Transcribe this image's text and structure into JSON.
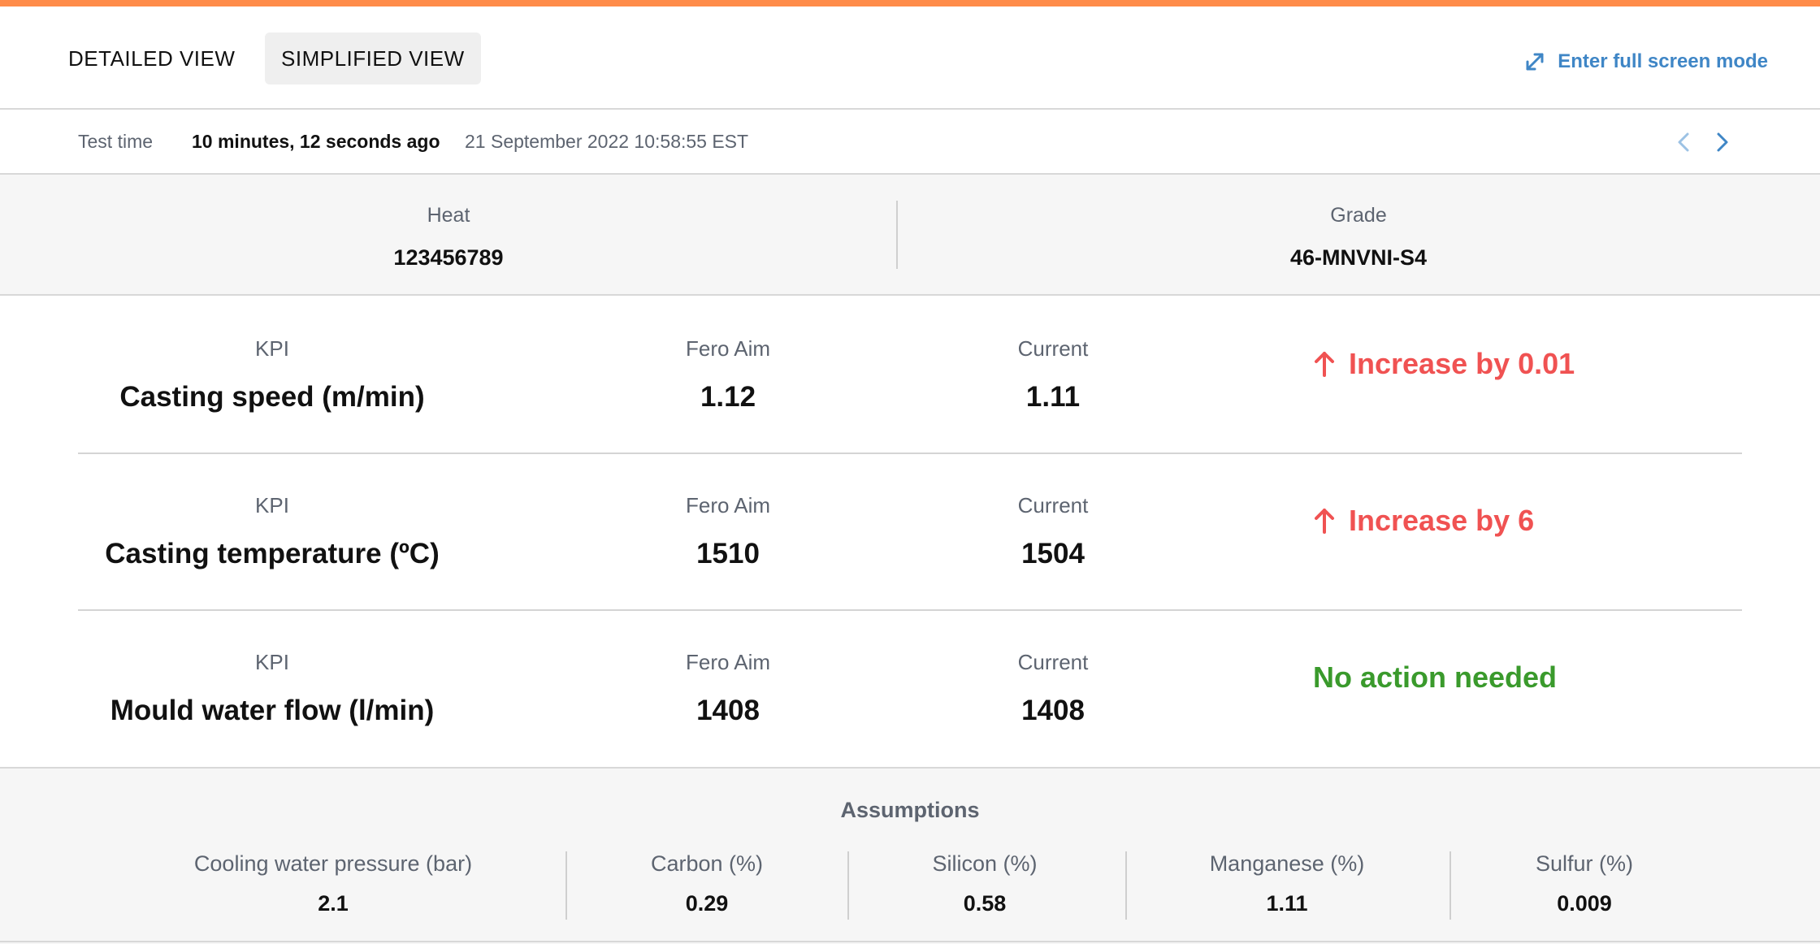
{
  "colors": {
    "accent": "#ff8c4a",
    "link": "#3f86c6",
    "alert": "#f05252",
    "success": "#3a9a2c"
  },
  "tabs": [
    {
      "label": "DETAILED VIEW",
      "active": false
    },
    {
      "label": "SIMPLIFIED VIEW",
      "active": true
    }
  ],
  "fullscreen": {
    "label": "Enter full screen mode",
    "icon": "expand-icon"
  },
  "test_time": {
    "label": "Test time",
    "relative": "10 minutes, 12 seconds ago",
    "absolute": "21 September 2022 10:58:55 EST",
    "prev_icon": "chevron-left-icon",
    "next_icon": "chevron-right-icon"
  },
  "heat": {
    "label": "Heat",
    "value": "123456789"
  },
  "grade": {
    "label": "Grade",
    "value": "46-MNVNI-S4"
  },
  "kpis": [
    {
      "kpi_label": "KPI",
      "name": "Casting speed (m/min)",
      "aim_label": "Fero Aim",
      "aim": "1.12",
      "current_label": "Current",
      "current": "1.11",
      "action": "Increase by 0.01",
      "action_type": "increase",
      "action_icon": "arrow-up-icon"
    },
    {
      "kpi_label": "KPI",
      "name": "Casting temperature (ºC)",
      "aim_label": "Fero Aim",
      "aim": "1510",
      "current_label": "Current",
      "current": "1504",
      "action": "Increase by 6",
      "action_type": "increase",
      "action_icon": "arrow-up-icon"
    },
    {
      "kpi_label": "KPI",
      "name": "Mould water flow (l/min)",
      "aim_label": "Fero Aim",
      "aim": "1408",
      "current_label": "Current",
      "current": "1408",
      "action": "No action needed",
      "action_type": "none"
    }
  ],
  "assumptions": {
    "title": "Assumptions",
    "items": [
      {
        "label": "Cooling water pressure (bar)",
        "value": "2.1"
      },
      {
        "label": "Carbon (%)",
        "value": "0.29"
      },
      {
        "label": "Silicon (%)",
        "value": "0.58"
      },
      {
        "label": "Manganese (%)",
        "value": "1.11"
      },
      {
        "label": "Sulfur (%)",
        "value": "0.009"
      }
    ]
  }
}
